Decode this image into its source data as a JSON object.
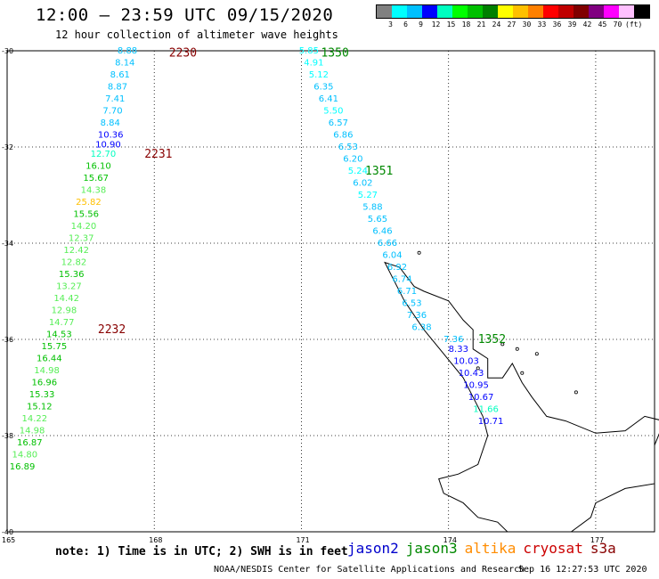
{
  "header": {
    "title": "12:00 – 23:59 UTC 09/15/2020",
    "subtitle": "12 hour collection of altimeter wave heights"
  },
  "legend": {
    "colors": [
      "#808080",
      "#00ffff",
      "#00c0ff",
      "#0000ff",
      "#00ffc0",
      "#00ff00",
      "#00c000",
      "#008000",
      "#ffff00",
      "#ffc000",
      "#ff8000",
      "#ff0000",
      "#c00000",
      "#800000",
      "#800080",
      "#ff00ff",
      "#ffc0ff",
      "#000000"
    ],
    "labels": [
      "3",
      "6",
      "9",
      "12",
      "15",
      "18",
      "21",
      "24",
      "27",
      "30",
      "33",
      "36",
      "39",
      "42",
      "45",
      "70",
      "(ft)"
    ]
  },
  "axes": {
    "lat_labels": [
      "-30",
      "-32",
      "-34",
      "-36",
      "-38",
      "-40"
    ],
    "lon_labels": [
      "165",
      "168",
      "171",
      "174",
      "177"
    ]
  },
  "note": "note: 1) Time is in UTC; 2) SWH is in feet",
  "satellites": [
    {
      "name": "jason2",
      "color": "#0000cc"
    },
    {
      "name": "jason3",
      "color": "#008800"
    },
    {
      "name": "altika",
      "color": "#ff8c00"
    },
    {
      "name": "cryosat",
      "color": "#cc0000"
    },
    {
      "name": "s3a",
      "color": "#880000"
    }
  ],
  "credit": "NOAA/NESDIS Center for Satellite Applications and Research",
  "stamp": "Sep 16 12:27:53 UTC 2020",
  "track_labels": [
    {
      "text": "2230",
      "lon": 168.3,
      "lat": -30.05,
      "color": "#880000"
    },
    {
      "text": "2231",
      "lon": 167.8,
      "lat": -32.15,
      "color": "#880000"
    },
    {
      "text": "2232",
      "lon": 166.85,
      "lat": -35.8,
      "color": "#880000"
    },
    {
      "text": "1350",
      "lon": 171.4,
      "lat": -30.05,
      "color": "#008800"
    },
    {
      "text": "1351",
      "lon": 172.3,
      "lat": -32.5,
      "color": "#008800"
    },
    {
      "text": "1352",
      "lon": 174.6,
      "lat": -36.0,
      "color": "#008800"
    }
  ],
  "west_track": [
    {
      "v": "8.88",
      "lon": 167.25,
      "lat": -30.0,
      "c": "#00c0ff"
    },
    {
      "v": "8.14",
      "lon": 167.2,
      "lat": -30.25,
      "c": "#00c0ff"
    },
    {
      "v": "8.61",
      "lon": 167.1,
      "lat": -30.5,
      "c": "#00c0ff"
    },
    {
      "v": "8.87",
      "lon": 167.05,
      "lat": -30.75,
      "c": "#00c0ff"
    },
    {
      "v": "7.41",
      "lon": 167.0,
      "lat": -31.0,
      "c": "#00c0ff"
    },
    {
      "v": "7.70",
      "lon": 166.95,
      "lat": -31.25,
      "c": "#00c0ff"
    },
    {
      "v": "8.84",
      "lon": 166.9,
      "lat": -31.5,
      "c": "#00c0ff"
    },
    {
      "v": "10.36",
      "lon": 166.85,
      "lat": -31.75,
      "c": "#0000ff"
    },
    {
      "v": "10.90",
      "lon": 166.8,
      "lat": -31.95,
      "c": "#0000ff"
    },
    {
      "v": "12.70",
      "lon": 166.7,
      "lat": -32.15,
      "c": "#00ffc0"
    },
    {
      "v": "16.10",
      "lon": 166.6,
      "lat": -32.4,
      "c": "#00c000"
    },
    {
      "v": "15.67",
      "lon": 166.55,
      "lat": -32.65,
      "c": "#00c000"
    },
    {
      "v": "14.38",
      "lon": 166.5,
      "lat": -32.9,
      "c": "#55ee55"
    },
    {
      "v": "25.82",
      "lon": 166.4,
      "lat": -33.15,
      "c": "#ffc000"
    },
    {
      "v": "15.56",
      "lon": 166.35,
      "lat": -33.4,
      "c": "#00c000"
    },
    {
      "v": "14.20",
      "lon": 166.3,
      "lat": -33.65,
      "c": "#55ee55"
    },
    {
      "v": "12.37",
      "lon": 166.25,
      "lat": -33.9,
      "c": "#55ee55"
    },
    {
      "v": "12.42",
      "lon": 166.15,
      "lat": -34.15,
      "c": "#55ee55"
    },
    {
      "v": "12.82",
      "lon": 166.1,
      "lat": -34.4,
      "c": "#55ee55"
    },
    {
      "v": "15.36",
      "lon": 166.05,
      "lat": -34.65,
      "c": "#00c000"
    },
    {
      "v": "13.27",
      "lon": 166.0,
      "lat": -34.9,
      "c": "#55ee55"
    },
    {
      "v": "14.42",
      "lon": 165.95,
      "lat": -35.15,
      "c": "#55ee55"
    },
    {
      "v": "12.98",
      "lon": 165.9,
      "lat": -35.4,
      "c": "#55ee55"
    },
    {
      "v": "14.77",
      "lon": 165.85,
      "lat": -35.65,
      "c": "#55ee55"
    },
    {
      "v": "14.53",
      "lon": 165.8,
      "lat": -35.9,
      "c": "#00c000"
    },
    {
      "v": "15.75",
      "lon": 165.7,
      "lat": -36.15,
      "c": "#00c000"
    },
    {
      "v": "16.44",
      "lon": 165.6,
      "lat": -36.4,
      "c": "#00c000"
    },
    {
      "v": "14.98",
      "lon": 165.55,
      "lat": -36.65,
      "c": "#55ee55"
    },
    {
      "v": "16.96",
      "lon": 165.5,
      "lat": -36.9,
      "c": "#00c000"
    },
    {
      "v": "15.33",
      "lon": 165.45,
      "lat": -37.15,
      "c": "#00c000"
    },
    {
      "v": "15.12",
      "lon": 165.4,
      "lat": -37.4,
      "c": "#00c000"
    },
    {
      "v": "14.22",
      "lon": 165.3,
      "lat": -37.65,
      "c": "#55ee55"
    },
    {
      "v": "14.98",
      "lon": 165.25,
      "lat": -37.9,
      "c": "#55ee55"
    },
    {
      "v": "16.87",
      "lon": 165.2,
      "lat": -38.15,
      "c": "#00c000"
    },
    {
      "v": "14.80",
      "lon": 165.1,
      "lat": -38.4,
      "c": "#55ee55"
    },
    {
      "v": "16.89",
      "lon": 165.05,
      "lat": -38.65,
      "c": "#00c000"
    }
  ],
  "east_track": [
    {
      "v": "5.85",
      "lon": 170.95,
      "lat": -30.0,
      "c": "#00ffff"
    },
    {
      "v": "4.91",
      "lon": 171.05,
      "lat": -30.25,
      "c": "#00ffff"
    },
    {
      "v": "5.12",
      "lon": 171.15,
      "lat": -30.5,
      "c": "#00ffff"
    },
    {
      "v": "6.35",
      "lon": 171.25,
      "lat": -30.75,
      "c": "#00c0ff"
    },
    {
      "v": "6.41",
      "lon": 171.35,
      "lat": -31.0,
      "c": "#00c0ff"
    },
    {
      "v": "5.50",
      "lon": 171.45,
      "lat": -31.25,
      "c": "#00ffff"
    },
    {
      "v": "6.57",
      "lon": 171.55,
      "lat": -31.5,
      "c": "#00c0ff"
    },
    {
      "v": "6.86",
      "lon": 171.65,
      "lat": -31.75,
      "c": "#00c0ff"
    },
    {
      "v": "6.53",
      "lon": 171.75,
      "lat": -32.0,
      "c": "#00c0ff"
    },
    {
      "v": "6.20",
      "lon": 171.85,
      "lat": -32.25,
      "c": "#00c0ff"
    },
    {
      "v": "5.24",
      "lon": 171.95,
      "lat": -32.5,
      "c": "#00ffff"
    },
    {
      "v": "6.02",
      "lon": 172.05,
      "lat": -32.75,
      "c": "#00c0ff"
    },
    {
      "v": "5.27",
      "lon": 172.15,
      "lat": -33.0,
      "c": "#00ffff"
    },
    {
      "v": "5.88",
      "lon": 172.25,
      "lat": -33.25,
      "c": "#00c0ff"
    },
    {
      "v": "5.65",
      "lon": 172.35,
      "lat": -33.5,
      "c": "#00c0ff"
    },
    {
      "v": "6.46",
      "lon": 172.45,
      "lat": -33.75,
      "c": "#00c0ff"
    },
    {
      "v": "6.66",
      "lon": 172.55,
      "lat": -34.0,
      "c": "#00c0ff"
    },
    {
      "v": "6.04",
      "lon": 172.65,
      "lat": -34.25,
      "c": "#00c0ff"
    },
    {
      "v": "6.92",
      "lon": 172.75,
      "lat": -34.5,
      "c": "#00c0ff"
    },
    {
      "v": "6.74",
      "lon": 172.85,
      "lat": -34.75,
      "c": "#00c0ff"
    },
    {
      "v": "6.71",
      "lon": 172.95,
      "lat": -35.0,
      "c": "#00c0ff"
    },
    {
      "v": "6.53",
      "lon": 173.05,
      "lat": -35.25,
      "c": "#00c0ff"
    },
    {
      "v": "7.36",
      "lon": 173.15,
      "lat": -35.5,
      "c": "#00c0ff"
    },
    {
      "v": "6.38",
      "lon": 173.25,
      "lat": -35.75,
      "c": "#00c0ff"
    }
  ],
  "coast_track": [
    {
      "v": "7.36",
      "lon": 173.9,
      "lat": -36.0,
      "c": "#00c0ff"
    },
    {
      "v": "8.33",
      "lon": 174.0,
      "lat": -36.2,
      "c": "#0000ff"
    },
    {
      "v": "10.03",
      "lon": 174.1,
      "lat": -36.45,
      "c": "#0000ff"
    },
    {
      "v": "10.43",
      "lon": 174.2,
      "lat": -36.7,
      "c": "#0000ff"
    },
    {
      "v": "10.95",
      "lon": 174.3,
      "lat": -36.95,
      "c": "#0000ff"
    },
    {
      "v": "10.67",
      "lon": 174.4,
      "lat": -37.2,
      "c": "#0000ff"
    },
    {
      "v": "11.66",
      "lon": 174.5,
      "lat": -37.45,
      "c": "#00ffc0"
    },
    {
      "v": "10.71",
      "lon": 174.6,
      "lat": -37.7,
      "c": "#0000ff"
    }
  ]
}
